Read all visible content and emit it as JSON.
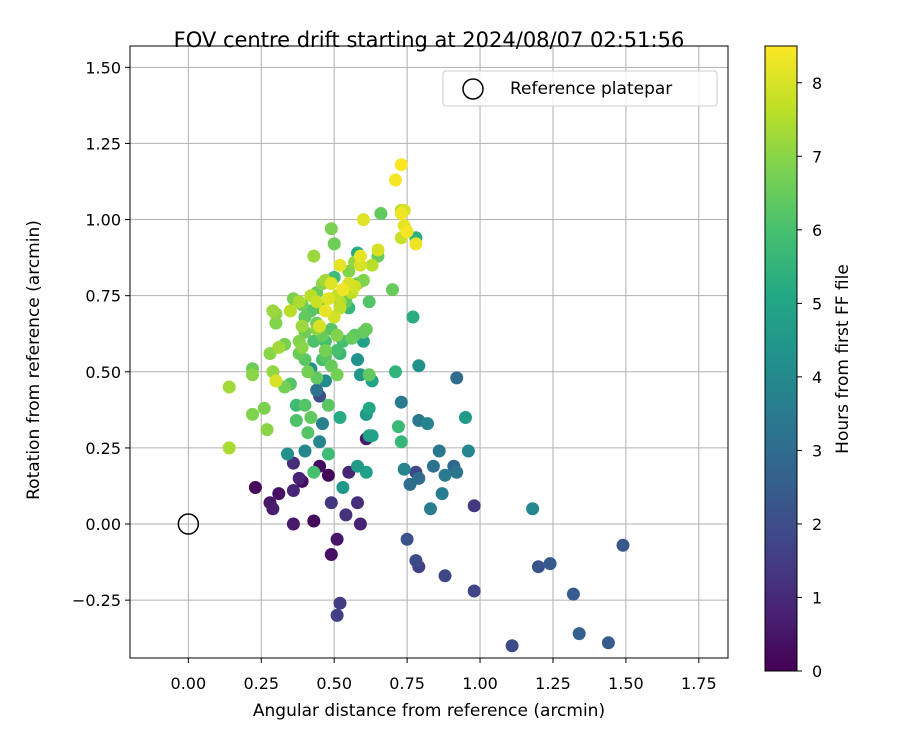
{
  "chart_data": {
    "type": "scatter",
    "title": "FOV centre drift starting at 2024/08/07 02:51:56",
    "xlabel": "Angular distance from reference (arcmin)",
    "ylabel": "Rotation from reference (arcmin)",
    "xlim": [
      -0.2,
      1.85
    ],
    "ylim": [
      -0.44,
      1.57
    ],
    "xticks": [
      0.0,
      0.25,
      0.5,
      0.75,
      1.0,
      1.25,
      1.5,
      1.75
    ],
    "xtick_labels": [
      "0.00",
      "0.25",
      "0.50",
      "0.75",
      "1.00",
      "1.25",
      "1.50",
      "1.75"
    ],
    "yticks": [
      -0.25,
      0.0,
      0.25,
      0.5,
      0.75,
      1.0,
      1.25,
      1.5
    ],
    "ytick_labels": [
      "−0.25",
      "0.00",
      "0.25",
      "0.50",
      "0.75",
      "1.00",
      "1.25",
      "1.50"
    ],
    "grid": true,
    "legend": {
      "placement": "top-right",
      "entries": [
        "Reference platepar"
      ]
    },
    "reference_point": {
      "x": 0.0,
      "y": 0.0
    },
    "colorbar": {
      "label": "Hours from first FF file",
      "colormap": "viridis",
      "range": [
        0,
        8.5
      ],
      "ticks": [
        0,
        1,
        2,
        3,
        4,
        5,
        6,
        7,
        8
      ],
      "tick_labels": [
        "0",
        "1",
        "2",
        "3",
        "4",
        "5",
        "6",
        "7",
        "8"
      ]
    },
    "points": [
      [
        0.23,
        0.12,
        0.2
      ],
      [
        0.28,
        0.07,
        0.5
      ],
      [
        0.29,
        0.05,
        0.7
      ],
      [
        0.31,
        0.1,
        0.4
      ],
      [
        0.36,
        0.11,
        0.9
      ],
      [
        0.36,
        0.0,
        0.6
      ],
      [
        0.38,
        0.15,
        0.8
      ],
      [
        0.39,
        0.14,
        0.3
      ],
      [
        0.43,
        0.01,
        0.2
      ],
      [
        0.45,
        0.19,
        0.3
      ],
      [
        0.48,
        0.16,
        0.1
      ],
      [
        0.49,
        0.07,
        1.3
      ],
      [
        0.49,
        -0.1,
        0.4
      ],
      [
        0.51,
        -0.05,
        0.5
      ],
      [
        0.52,
        -0.26,
        1.5
      ],
      [
        0.51,
        -0.3,
        1.6
      ],
      [
        0.54,
        0.03,
        1.2
      ],
      [
        0.55,
        0.17,
        0.9
      ],
      [
        0.58,
        0.07,
        1.1
      ],
      [
        0.59,
        0.0,
        0.8
      ],
      [
        0.36,
        0.2,
        1.1
      ],
      [
        0.45,
        0.42,
        2.0
      ],
      [
        0.61,
        0.28,
        0.6
      ],
      [
        0.75,
        -0.05,
        2.1
      ],
      [
        0.78,
        -0.12,
        1.9
      ],
      [
        0.79,
        -0.14,
        1.6
      ],
      [
        0.88,
        -0.17,
        1.8
      ],
      [
        0.98,
        -0.22,
        1.7
      ],
      [
        1.11,
        -0.4,
        1.9
      ],
      [
        1.2,
        -0.14,
        2.2
      ],
      [
        1.24,
        -0.13,
        2.4
      ],
      [
        1.32,
        -0.23,
        2.5
      ],
      [
        1.34,
        -0.36,
        2.6
      ],
      [
        1.44,
        -0.39,
        2.5
      ],
      [
        1.49,
        -0.07,
        2.3
      ],
      [
        0.98,
        0.06,
        1.4
      ],
      [
        0.78,
        0.17,
        1.8
      ],
      [
        0.79,
        0.15,
        3.0
      ],
      [
        0.76,
        0.13,
        3.1
      ],
      [
        0.83,
        0.05,
        3.6
      ],
      [
        0.84,
        0.19,
        3.2
      ],
      [
        0.86,
        0.24,
        3.4
      ],
      [
        0.87,
        0.1,
        3.6
      ],
      [
        0.88,
        0.16,
        3.5
      ],
      [
        0.91,
        0.19,
        2.9
      ],
      [
        0.92,
        0.17,
        3.3
      ],
      [
        0.92,
        0.48,
        3.0
      ],
      [
        0.96,
        0.24,
        3.9
      ],
      [
        0.95,
        0.35,
        4.6
      ],
      [
        1.18,
        0.05,
        3.9
      ],
      [
        0.73,
        0.4,
        3.5
      ],
      [
        0.74,
        0.18,
        3.8
      ],
      [
        0.79,
        0.34,
        3.4
      ],
      [
        0.79,
        0.52,
        4.2
      ],
      [
        0.82,
        0.33,
        3.8
      ],
      [
        0.46,
        0.33,
        3.7
      ],
      [
        0.44,
        0.44,
        3.2
      ],
      [
        0.45,
        0.27,
        3.9
      ],
      [
        0.47,
        0.47,
        4.1
      ],
      [
        0.4,
        0.24,
        3.9
      ],
      [
        0.34,
        0.23,
        4.2
      ],
      [
        0.42,
        0.51,
        4.3
      ],
      [
        0.53,
        0.12,
        4.5
      ],
      [
        0.58,
        0.19,
        4.6
      ],
      [
        0.61,
        0.17,
        4.8
      ],
      [
        0.59,
        0.49,
        4.5
      ],
      [
        0.58,
        0.54,
        4.3
      ],
      [
        0.61,
        0.36,
        4.6
      ],
      [
        0.62,
        0.29,
        4.7
      ],
      [
        0.63,
        0.29,
        4.9
      ],
      [
        0.6,
        0.6,
        4.8
      ],
      [
        0.62,
        0.38,
        5.1
      ],
      [
        0.63,
        0.47,
        5.0
      ],
      [
        0.52,
        0.35,
        5.2
      ],
      [
        0.58,
        0.89,
        5.2
      ],
      [
        0.77,
        0.68,
        5.3
      ],
      [
        0.78,
        0.94,
        5.3
      ],
      [
        0.71,
        0.5,
        5.5
      ],
      [
        0.72,
        0.32,
        5.7
      ],
      [
        0.73,
        0.27,
        5.6
      ],
      [
        0.55,
        0.71,
        5.6
      ],
      [
        0.5,
        0.81,
        5.8
      ],
      [
        0.48,
        0.23,
        5.8
      ],
      [
        0.43,
        0.17,
        6.0
      ],
      [
        0.37,
        0.34,
        6.1
      ],
      [
        0.37,
        0.39,
        5.8
      ],
      [
        0.4,
        0.39,
        6.2
      ],
      [
        0.42,
        0.35,
        6.4
      ],
      [
        0.41,
        0.3,
        6.2
      ],
      [
        0.48,
        0.39,
        6.3
      ],
      [
        0.51,
        0.57,
        6.0
      ],
      [
        0.53,
        0.6,
        5.9
      ],
      [
        0.54,
        0.73,
        6.4
      ],
      [
        0.56,
        0.61,
        6.5
      ],
      [
        0.57,
        0.62,
        6.3
      ],
      [
        0.6,
        0.63,
        6.4
      ],
      [
        0.61,
        0.64,
        6.5
      ],
      [
        0.62,
        0.73,
        6.2
      ],
      [
        0.62,
        0.49,
        6.4
      ],
      [
        0.65,
        0.88,
        6.5
      ],
      [
        0.66,
        1.02,
        6.4
      ],
      [
        0.7,
        0.77,
        6.5
      ],
      [
        0.58,
        0.79,
        6.7
      ],
      [
        0.6,
        0.8,
        6.9
      ],
      [
        0.49,
        0.97,
        6.8
      ],
      [
        0.5,
        0.92,
        6.6
      ],
      [
        0.55,
        0.83,
        6.9
      ],
      [
        0.57,
        0.86,
        7.1
      ],
      [
        0.43,
        0.88,
        7.2
      ],
      [
        0.46,
        0.79,
        7.0
      ],
      [
        0.47,
        0.8,
        7.3
      ],
      [
        0.36,
        0.74,
        6.8
      ],
      [
        0.39,
        0.72,
        6.6
      ],
      [
        0.4,
        0.68,
        6.4
      ],
      [
        0.42,
        0.7,
        6.2
      ],
      [
        0.44,
        0.76,
        6.5
      ],
      [
        0.43,
        0.6,
        6.1
      ],
      [
        0.45,
        0.71,
        6.3
      ],
      [
        0.47,
        0.6,
        6.0
      ],
      [
        0.49,
        0.64,
        6.2
      ],
      [
        0.44,
        0.66,
        6.6
      ],
      [
        0.47,
        0.55,
        6.3
      ],
      [
        0.49,
        0.52,
        6.5
      ],
      [
        0.51,
        0.49,
        6.7
      ],
      [
        0.51,
        0.62,
        6.9
      ],
      [
        0.4,
        0.63,
        6.6
      ],
      [
        0.4,
        0.54,
        6.3
      ],
      [
        0.38,
        0.56,
        6.5
      ],
      [
        0.35,
        0.46,
        6.2
      ],
      [
        0.33,
        0.45,
        6.7
      ],
      [
        0.33,
        0.59,
        6.8
      ],
      [
        0.3,
        0.66,
        6.9
      ],
      [
        0.3,
        0.69,
        7.0
      ],
      [
        0.29,
        0.7,
        7.2
      ],
      [
        0.28,
        0.56,
        7.0
      ],
      [
        0.29,
        0.5,
        7.1
      ],
      [
        0.26,
        0.38,
        6.8
      ],
      [
        0.22,
        0.36,
        6.9
      ],
      [
        0.22,
        0.51,
        6.6
      ],
      [
        0.22,
        0.49,
        7.0
      ],
      [
        0.14,
        0.45,
        7.3
      ],
      [
        0.14,
        0.25,
        7.4
      ],
      [
        0.27,
        0.31,
        7.0
      ],
      [
        0.3,
        0.47,
        8.0
      ],
      [
        0.35,
        0.7,
        7.6
      ],
      [
        0.38,
        0.73,
        7.4
      ],
      [
        0.39,
        0.65,
        7.2
      ],
      [
        0.38,
        0.6,
        6.9
      ],
      [
        0.41,
        0.5,
        6.7
      ],
      [
        0.44,
        0.48,
        6.4
      ],
      [
        0.46,
        0.54,
        6.0
      ],
      [
        0.42,
        0.75,
        7.6
      ],
      [
        0.44,
        0.73,
        7.8
      ],
      [
        0.45,
        0.65,
        8.0
      ],
      [
        0.48,
        0.74,
        8.1
      ],
      [
        0.5,
        0.68,
        7.9
      ],
      [
        0.52,
        0.71,
        7.7
      ],
      [
        0.53,
        0.77,
        8.3
      ],
      [
        0.52,
        0.85,
        8.2
      ],
      [
        0.55,
        0.79,
        8.0
      ],
      [
        0.56,
        0.76,
        7.7
      ],
      [
        0.57,
        0.78,
        7.9
      ],
      [
        0.59,
        0.85,
        8.0
      ],
      [
        0.59,
        0.88,
        8.2
      ],
      [
        0.6,
        1.0,
        8.1
      ],
      [
        0.63,
        0.85,
        7.6
      ],
      [
        0.65,
        0.9,
        8.0
      ],
      [
        0.71,
        1.13,
        8.4
      ],
      [
        0.73,
        1.18,
        8.5
      ],
      [
        0.73,
        1.02,
        8.3
      ],
      [
        0.74,
        1.03,
        8.0
      ],
      [
        0.74,
        0.98,
        8.2
      ],
      [
        0.75,
        0.96,
        8.4
      ],
      [
        0.73,
        0.94,
        7.8
      ],
      [
        0.73,
        1.03,
        7.6
      ],
      [
        0.78,
        0.92,
        8.3
      ],
      [
        0.49,
        0.79,
        8.1
      ],
      [
        0.51,
        0.75,
        7.7
      ],
      [
        0.52,
        0.73,
        7.5
      ],
      [
        0.47,
        0.7,
        8.2
      ],
      [
        0.44,
        0.64,
        7.0
      ],
      [
        0.46,
        0.62,
        6.5
      ],
      [
        0.47,
        0.57,
        6.7
      ],
      [
        0.52,
        0.56,
        5.7
      ],
      [
        0.39,
        0.58,
        7.0
      ],
      [
        0.31,
        0.58,
        7.3
      ]
    ]
  }
}
